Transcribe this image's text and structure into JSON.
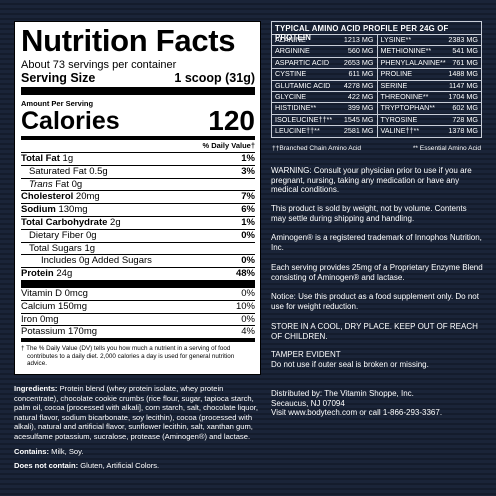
{
  "nutrition": {
    "title": "Nutrition Facts",
    "servings": "About 73 servings per container",
    "serving_size_label": "Serving Size",
    "serving_size_value": "1 scoop (31g)",
    "amount_per_serving": "Amount Per Serving",
    "calories_label": "Calories",
    "calories_value": "120",
    "dv_header": "% Daily Value†",
    "rows": [
      {
        "label": "Total Fat",
        "amount": "1g",
        "dv": "1%"
      },
      {
        "label": "Saturated Fat",
        "amount": "0.5g",
        "dv": "3%"
      },
      {
        "label": "Trans",
        "amount": "Fat 0g",
        "dv": ""
      },
      {
        "label": "Cholesterol",
        "amount": "20mg",
        "dv": "7%"
      },
      {
        "label": "Sodium",
        "amount": "130mg",
        "dv": "6%"
      },
      {
        "label": "Total Carbohydrate",
        "amount": "2g",
        "dv": "1%"
      },
      {
        "label": "Dietary Fiber",
        "amount": "0g",
        "dv": "0%"
      },
      {
        "label": "Total Sugars",
        "amount": "1g",
        "dv": ""
      },
      {
        "label": "Includes 0g Added Sugars",
        "amount": "",
        "dv": "0%"
      },
      {
        "label": "Protein",
        "amount": "24g",
        "dv": "48%"
      }
    ],
    "vitamins": [
      {
        "label": "Vitamin D 0mcg",
        "dv": "0%"
      },
      {
        "label": "Calcium 150mg",
        "dv": "10%"
      },
      {
        "label": "Iron 0mg",
        "dv": "0%"
      },
      {
        "label": "Potassium 170mg",
        "dv": "4%"
      }
    ],
    "footnote": "† The % Daily Value (DV) tells you how much a nutrient in a serving of food contributes to a daily diet. 2,000 calories a day is used for general nutrition advice."
  },
  "ingredients": {
    "label": "Ingredients:",
    "text": "Protein blend (whey protein isolate, whey protein concentrate), chocolate cookie crumbs (rice flour, sugar, tapioca starch, palm oil, cocoa [processed with alkali], corn starch, salt, chocolate liquor, natural flavor, sodium bicarbonate, soy lecithin), cocoa (processed with alkali), natural and artificial flavor, sunflower lecithin, salt, xanthan gum, acesulfame potassium, sucralose, protease (Aminogen®) and lactase.",
    "contains_label": "Contains:",
    "contains_text": "Milk, Soy.",
    "not_contain_label": "Does not contain:",
    "not_contain_text": "Gluten, Artificial Colors."
  },
  "amino": {
    "title": "TYPICAL AMINO ACID PROFILE PER 24G OF PROTEIN",
    "left": [
      {
        "name": "Alanine",
        "value": "1213 mg"
      },
      {
        "name": "Arginine",
        "value": "560 mg"
      },
      {
        "name": "Aspartic Acid",
        "value": "2653 mg"
      },
      {
        "name": "Cystine",
        "value": "611 mg"
      },
      {
        "name": "Glutamic Acid",
        "value": "4278 mg"
      },
      {
        "name": "Glycine",
        "value": "422 mg"
      },
      {
        "name": "Histidine**",
        "value": "399 mg"
      },
      {
        "name": "Isoleucine††**",
        "value": "1545 mg"
      },
      {
        "name": "Leucine††**",
        "value": "2581 mg"
      }
    ],
    "right": [
      {
        "name": "Lysine**",
        "value": "2383 mg"
      },
      {
        "name": "Methionine**",
        "value": "541 mg"
      },
      {
        "name": "Phenylalanine**",
        "value": "761 mg"
      },
      {
        "name": "Proline",
        "value": "1488 mg"
      },
      {
        "name": "Serine",
        "value": "1147 mg"
      },
      {
        "name": "Threonine**",
        "value": "1704 mg"
      },
      {
        "name": "Tryptophan**",
        "value": "602 mg"
      },
      {
        "name": "Tyrosine",
        "value": "728 mg"
      },
      {
        "name": "Valine††**",
        "value": "1378 mg"
      }
    ],
    "note_bcaa": "††Branched Chain Amino Acid",
    "note_essential": "** Essential Amino Acid"
  },
  "info": {
    "warning": "WARNING: Consult your physician prior to use if you are pregnant, nursing, taking any medication or have any medical conditions.",
    "weight": "This product is sold by weight, not by volume. Contents may settle during shipping and handling.",
    "trademark": "Aminogen® is a registered trademark of Innophos Nutrition, Inc.",
    "enzyme": "Each serving provides 25mg of a Proprietary Enzyme Blend consisting of Aminogen® and lactase.",
    "notice": "Notice: Use this product as a food supplement only. Do not use for weight reduction.",
    "store": "STORE IN A COOL, DRY PLACE. KEEP OUT OF REACH OF CHILDREN.",
    "tamper": "TAMPER EVIDENT\nDo not use if outer seal is broken or missing.",
    "distributed": "Distributed by: The Vitamin Shoppe, Inc.\nSecaucus, NJ 07094\nVisit www.bodytech.com or call 1-866-293-3367."
  }
}
